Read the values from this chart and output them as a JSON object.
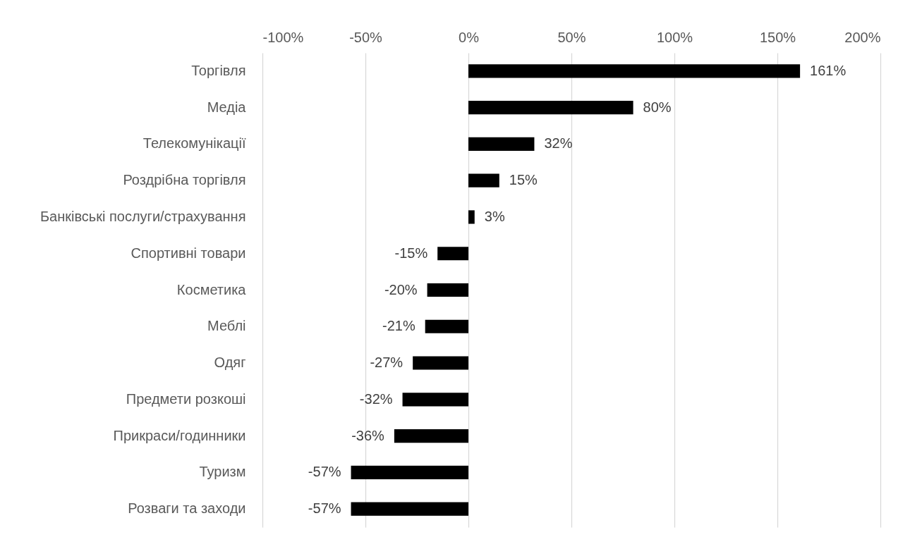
{
  "chart_data": {
    "type": "bar",
    "orientation": "horizontal",
    "categories": [
      "Торгівля",
      "Медіа",
      "Телекомунікації",
      "Роздрібна торгівля",
      "Банківські послуги/страхування",
      "Спортивні товари",
      "Косметика",
      "Меблі",
      "Одяг",
      "Предмети розкоші",
      "Прикраси/годинники",
      "Туризм",
      "Розваги та заходи"
    ],
    "values": [
      161,
      80,
      32,
      15,
      3,
      -15,
      -20,
      -21,
      -27,
      -32,
      -36,
      -57,
      -57
    ],
    "value_labels": [
      "161%",
      "80%",
      "32%",
      "15%",
      "3%",
      "-15%",
      "-20%",
      "-21%",
      "-27%",
      "-32%",
      "-36%",
      "-57%",
      "-57%"
    ],
    "color": "#000000",
    "xlim": [
      -100,
      200
    ],
    "xticks": [
      {
        "value": -100,
        "label": "-100%"
      },
      {
        "value": -50,
        "label": "-50%"
      },
      {
        "value": 0,
        "label": "0%"
      },
      {
        "value": 50,
        "label": "50%"
      },
      {
        "value": 100,
        "label": "100%"
      },
      {
        "value": 150,
        "label": "150%"
      },
      {
        "value": 200,
        "label": "200%"
      }
    ],
    "grid": "x"
  }
}
